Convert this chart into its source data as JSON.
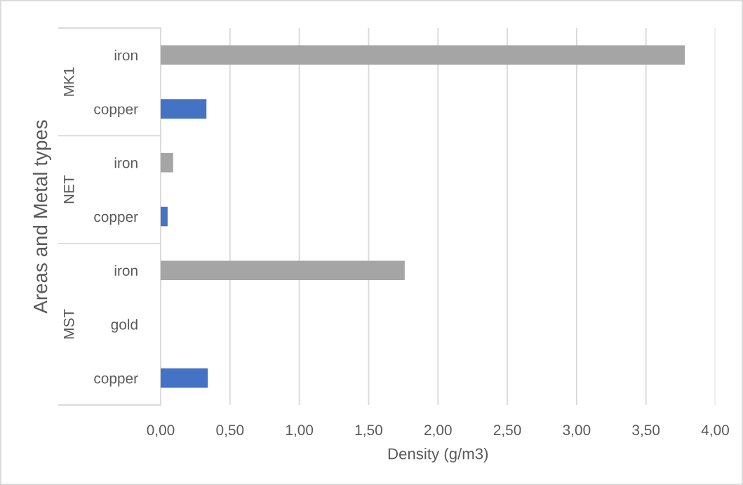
{
  "chart_data": {
    "type": "bar",
    "orientation": "horizontal",
    "categories": [
      "iron",
      "copper",
      "iron",
      "copper",
      "iron",
      "gold",
      "copper"
    ],
    "y2_categories": [
      "MK1",
      null,
      "NET",
      null,
      null,
      "MST",
      null
    ],
    "values": [
      3.78,
      0.33,
      0.09,
      0.05,
      1.76,
      0,
      0.34
    ],
    "colors": [
      "#a5a5a5",
      "#4472c4",
      "#a5a5a5",
      "#4472c4",
      "#a5a5a5",
      "#4472c4",
      "#4472c4"
    ],
    "xlabel": "Density (g/m3)",
    "ylabel": "Areas and Metal types",
    "xlim": [
      0,
      4
    ],
    "xticks": [
      {
        "value": 0,
        "label": "0,00"
      },
      {
        "value": 0.5,
        "label": "0,50"
      },
      {
        "value": 1,
        "label": "1,00"
      },
      {
        "value": 1.5,
        "label": "1,50"
      },
      {
        "value": 2,
        "label": "2,00"
      },
      {
        "value": 2.5,
        "label": "2,50"
      },
      {
        "value": 3,
        "label": "3,00"
      },
      {
        "value": 3.5,
        "label": "3,50"
      },
      {
        "value": 4,
        "label": "4,00"
      }
    ],
    "grid": "x"
  }
}
